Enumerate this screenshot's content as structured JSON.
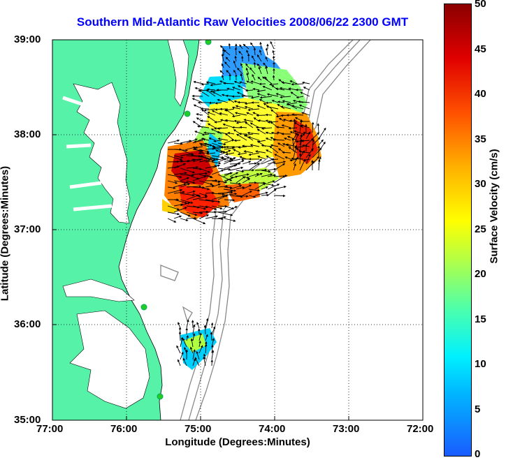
{
  "title": "Southern Mid-Atlantic Raw Velocities 2008/06/22 2300 GMT",
  "x_axis": {
    "label": "Longitude (Degrees:Minutes)",
    "ticks": [
      "77:00",
      "76:00",
      "75:00",
      "74:00",
      "73:00",
      "72:00"
    ]
  },
  "y_axis": {
    "label": "Latitude (Degrees:Minutes)",
    "ticks": [
      "39:00",
      "38:00",
      "37:00",
      "36:00",
      "35:00"
    ]
  },
  "colorbar": {
    "label": "Surface Velocity (cm/s)",
    "ticks": [
      "50",
      "45",
      "40",
      "35",
      "30",
      "25",
      "20",
      "15",
      "10",
      "5",
      "0"
    ],
    "range": [
      0,
      50
    ],
    "colormap": "jet"
  },
  "colors": {
    "title": "#0000ff",
    "land": "#55f2a8",
    "ocean": "#ffffff",
    "bathymetry": "#888888",
    "station": "#22cc22"
  },
  "map": {
    "extent_lon": [
      -77,
      -72
    ],
    "extent_lat": [
      35,
      39
    ],
    "grid": "dotted"
  }
}
